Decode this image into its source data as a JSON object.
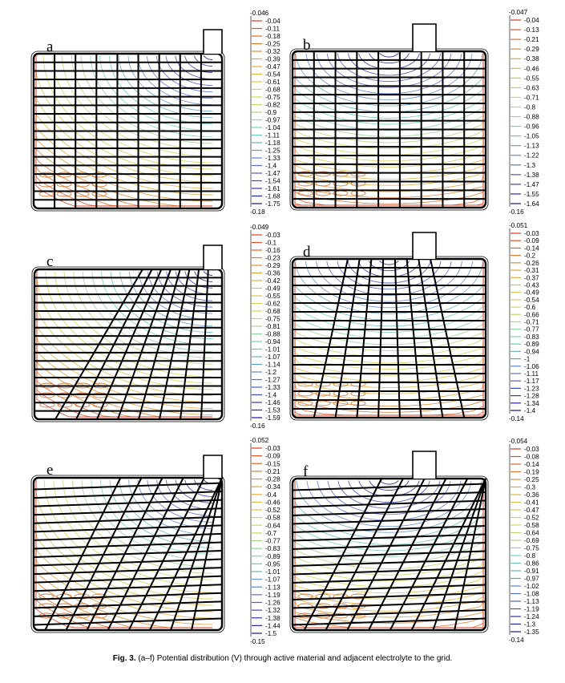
{
  "figure": {
    "caption_label": "Fig. 3.",
    "caption_text": "(a–f) Potential distribution (V) through active material and adjacent electrolyte to the grid.",
    "panels": [
      {
        "label": "a",
        "style": "rect",
        "lug": "right",
        "max": "-0.046",
        "min": "-0.18",
        "ticks": [
          "-0.04",
          "-0.11",
          "-0.18",
          "-0.25",
          "-0.32",
          "-0.39",
          "-0.47",
          "-0.54",
          "-0.61",
          "-0.68",
          "-0.75",
          "-0.82",
          "-0.9",
          "-0.97",
          "-1.04",
          "-1.11",
          "-1.18",
          "-1.25",
          "-1.33",
          "-1.4",
          "-1.47",
          "-1.54",
          "-1.61",
          "-1.68",
          "-1.75"
        ]
      },
      {
        "label": "b",
        "style": "rect",
        "lug": "center",
        "max": "-0.047",
        "min": "-0.16",
        "ticks": [
          "-0.04",
          "-0.13",
          "-0.21",
          "-0.29",
          "-0.38",
          "-0.46",
          "-0.55",
          "-0.63",
          "-0.71",
          "-0.8",
          "-0.88",
          "-0.96",
          "-1.05",
          "-1.13",
          "-1.22",
          "-1.3",
          "-1.38",
          "-1.47",
          "-1.55",
          "-1.64"
        ]
      },
      {
        "label": "c",
        "style": "radial",
        "lug": "right",
        "max": "-0.049",
        "min": "-0.16",
        "ticks": [
          "-0.03",
          "-0.1",
          "-0.16",
          "-0.23",
          "-0.29",
          "-0.36",
          "-0.42",
          "-0.49",
          "-0.55",
          "-0.62",
          "-0.68",
          "-0.75",
          "-0.81",
          "-0.88",
          "-0.94",
          "-1.01",
          "-1.07",
          "-1.14",
          "-1.2",
          "-1.27",
          "-1.33",
          "-1.4",
          "-1.46",
          "-1.53",
          "-1.59"
        ]
      },
      {
        "label": "d",
        "style": "radial",
        "lug": "center",
        "max": "-0.051",
        "min": "-0.14",
        "ticks": [
          "-0.03",
          "-0.09",
          "-0.14",
          "-0.2",
          "-0.26",
          "-0.31",
          "-0.37",
          "-0.43",
          "-0.49",
          "-0.54",
          "-0.6",
          "-0.66",
          "-0.71",
          "-0.77",
          "-0.83",
          "-0.89",
          "-0.94",
          "-1",
          "-1.06",
          "-1.11",
          "-1.17",
          "-1.23",
          "-1.28",
          "-1.34",
          "-1.4"
        ]
      },
      {
        "label": "e",
        "style": "diag",
        "lug": "right",
        "max": "-0.052",
        "min": "-0.15",
        "ticks": [
          "-0.03",
          "-0.09",
          "-0.15",
          "-0.21",
          "-0.28",
          "-0.34",
          "-0.4",
          "-0.46",
          "-0.52",
          "-0.58",
          "-0.64",
          "-0.7",
          "-0.77",
          "-0.83",
          "-0.89",
          "-0.95",
          "-1.01",
          "-1.07",
          "-1.13",
          "-1.19",
          "-1.26",
          "-1.32",
          "-1.38",
          "-1.44",
          "-1.5"
        ]
      },
      {
        "label": "f",
        "style": "diag",
        "lug": "center",
        "max": "-0.054",
        "min": "-0.14",
        "ticks": [
          "-0.03",
          "-0.08",
          "-0.14",
          "-0.19",
          "-0.25",
          "-0.3",
          "-0.36",
          "-0.41",
          "-0.47",
          "-0.52",
          "-0.58",
          "-0.64",
          "-0.69",
          "-0.75",
          "-0.8",
          "-0.86",
          "-0.91",
          "-0.97",
          "-1.02",
          "-1.08",
          "-1.13",
          "-1.19",
          "-1.24",
          "-1.3",
          "-1.35"
        ]
      }
    ]
  }
}
